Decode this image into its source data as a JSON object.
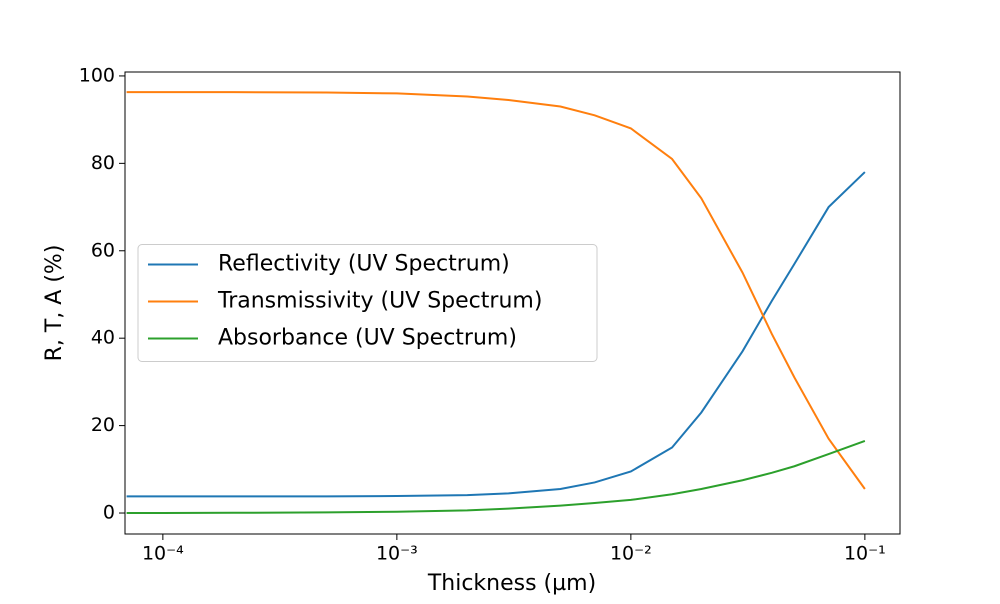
{
  "chart_data": {
    "type": "line",
    "x_label": "Thickness (µm)",
    "y_label": "R, T, A (%)",
    "x": [
      7e-05,
      0.0001,
      0.0002,
      0.0005,
      0.001,
      0.002,
      0.003,
      0.005,
      0.007,
      0.01,
      0.015,
      0.02,
      0.03,
      0.04,
      0.05,
      0.07,
      0.1
    ],
    "series": [
      {
        "name": "Reflectivity (UV Spectrum)",
        "color": "#1f77b4",
        "values": [
          3.8,
          3.8,
          3.8,
          3.8,
          3.9,
          4.1,
          4.5,
          5.5,
          7,
          9.5,
          15,
          23,
          37,
          48.5,
          57,
          70,
          78
        ]
      },
      {
        "name": "Transmissivity (UV Spectrum)",
        "color": "#ff7f0e",
        "values": [
          96.3,
          96.3,
          96.3,
          96.2,
          96,
          95.3,
          94.5,
          93,
          91,
          88,
          81,
          72,
          55,
          41,
          31,
          17,
          5.5
        ]
      },
      {
        "name": "Absorbance (UV Spectrum)",
        "color": "#2ca02c",
        "values": [
          0,
          0,
          0.05,
          0.15,
          0.3,
          0.6,
          1,
          1.7,
          2.3,
          3,
          4.3,
          5.5,
          7.5,
          9.2,
          10.7,
          13.5,
          16.5
        ]
      }
    ],
    "xscale": "log",
    "xlim": [
      6.89e-05,
      0.1413
    ],
    "ylim": [
      -4.8,
      100.9
    ],
    "xticks": [
      {
        "value": 0.0001,
        "label": "10⁻⁴"
      },
      {
        "value": 0.001,
        "label": "10⁻³"
      },
      {
        "value": 0.01,
        "label": "10⁻²"
      },
      {
        "value": 0.1,
        "label": "10⁻¹"
      }
    ],
    "yticks": [
      0,
      20,
      40,
      60,
      80,
      100
    ],
    "legend": "center left"
  }
}
